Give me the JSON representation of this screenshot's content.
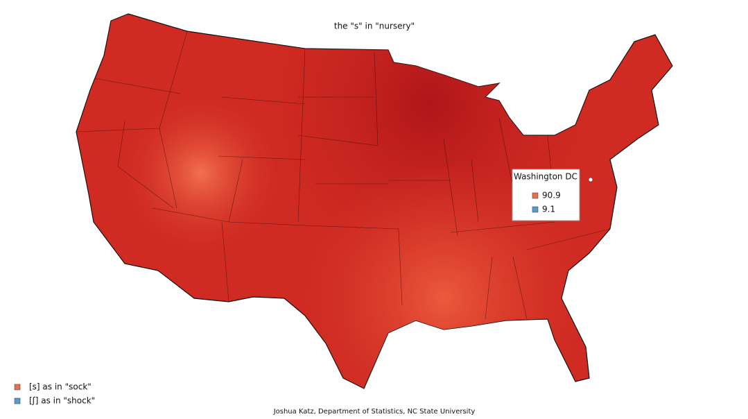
{
  "title": "the \"s\" in \"nursery\"",
  "tooltip": {
    "label": "Washington DC",
    "rows": [
      {
        "value": 90.9,
        "color": "#e8704f"
      },
      {
        "value": 9.1,
        "color": "#5b9bc8"
      }
    ]
  },
  "legend": [
    {
      "label": "[s] as in \"sock\"",
      "color": "#e8704f"
    },
    {
      "label": "[ʃ] as in \"shock\"",
      "color": "#5b9bc8"
    }
  ],
  "credit": "Joshua Katz, Department of Statistics, NC State University"
}
